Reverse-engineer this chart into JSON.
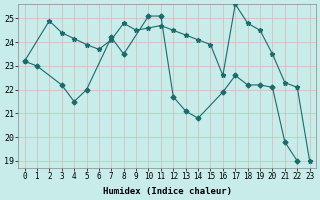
{
  "xlabel": "Humidex (Indice chaleur)",
  "bg_color": "#c8ecea",
  "grid_color_major": "#d4b8b8",
  "grid_color_minor": "#d4b8b8",
  "line_color": "#1a6b6b",
  "xlim": [
    -0.5,
    23.5
  ],
  "ylim": [
    18.7,
    25.6
  ],
  "yticks": [
    19,
    20,
    21,
    22,
    23,
    24,
    25
  ],
  "xticks": [
    0,
    1,
    2,
    3,
    4,
    5,
    6,
    7,
    8,
    9,
    10,
    11,
    12,
    13,
    14,
    15,
    16,
    17,
    18,
    19,
    20,
    21,
    22,
    23
  ],
  "line1_x": [
    0,
    1,
    3,
    4,
    5,
    7,
    8,
    10,
    11,
    12,
    13,
    14,
    16,
    17,
    18,
    19,
    20,
    21,
    22
  ],
  "line1_y": [
    23.2,
    23.0,
    22.2,
    21.5,
    22.0,
    24.2,
    23.5,
    25.1,
    25.1,
    21.7,
    21.1,
    20.8,
    21.9,
    22.6,
    22.2,
    22.2,
    22.1,
    19.8,
    19.0
  ],
  "line2_x": [
    0,
    2,
    3,
    4,
    5,
    6,
    7,
    8,
    9,
    10,
    11,
    12,
    13,
    14,
    15,
    16,
    17,
    18,
    19,
    20,
    21,
    22,
    23
  ],
  "line2_y": [
    23.2,
    24.9,
    24.4,
    24.15,
    23.9,
    23.7,
    24.1,
    24.8,
    24.5,
    24.6,
    24.7,
    24.5,
    24.3,
    24.1,
    23.9,
    22.6,
    25.6,
    24.8,
    24.5,
    23.5,
    22.3,
    22.1,
    19.0
  ]
}
